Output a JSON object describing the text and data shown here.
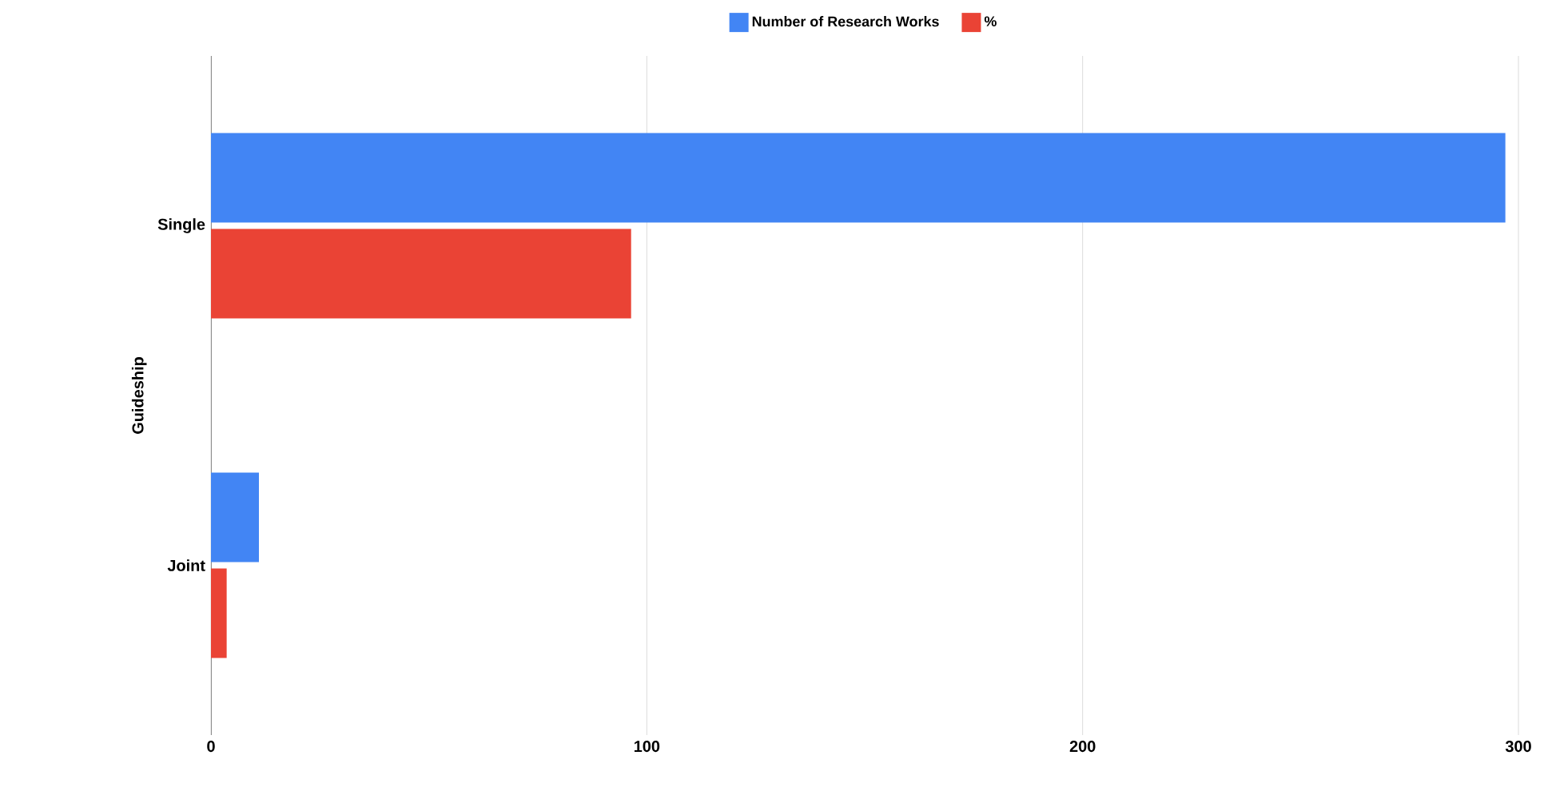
{
  "chart_data": {
    "type": "bar",
    "orientation": "horizontal",
    "ylabel": "Guideship",
    "categories": [
      "Single",
      "Joint"
    ],
    "series": [
      {
        "name": "Number of Research Works",
        "color": "#4285f4",
        "values": [
          297,
          11
        ]
      },
      {
        "name": "%",
        "color": "#ea4335",
        "values": [
          96.4,
          3.6
        ]
      }
    ],
    "xlim": [
      0,
      300
    ],
    "xticks": [
      0,
      100,
      200,
      300
    ],
    "grid": "x",
    "legend": "top"
  }
}
